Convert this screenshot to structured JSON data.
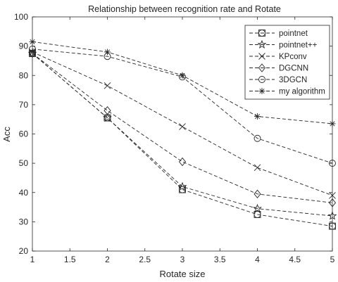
{
  "chart_data": {
    "type": "line",
    "title": "Relationship between recognition rate and Rotate",
    "xlabel": "Rotate size",
    "ylabel": "Acc",
    "x": [
      1,
      2,
      3,
      4,
      5
    ],
    "xlim": [
      1,
      5
    ],
    "ylim": [
      20,
      100
    ],
    "xticks": [
      1,
      1.5,
      2,
      2.5,
      3,
      3.5,
      4,
      4.5,
      5
    ],
    "yticks": [
      20,
      30,
      40,
      50,
      60,
      70,
      80,
      90,
      100
    ],
    "grid": false,
    "legend_position": "top-right",
    "line_color": "#262626",
    "line_style": "dashed",
    "series": [
      {
        "name": "pointnet",
        "marker": "square-circle",
        "values": [
          87.5,
          65.5,
          41,
          32.5,
          28.5
        ]
      },
      {
        "name": "pointnet++",
        "marker": "star",
        "values": [
          87.5,
          65.5,
          42,
          34.5,
          32
        ]
      },
      {
        "name": "KPconv",
        "marker": "x",
        "values": [
          88,
          76.5,
          62.5,
          48.5,
          39
        ]
      },
      {
        "name": "DGCNN",
        "marker": "diamond",
        "values": [
          87.5,
          68,
          50.5,
          39.5,
          36.5
        ]
      },
      {
        "name": "3DGCN",
        "marker": "circle",
        "values": [
          89,
          86.5,
          79.5,
          58.5,
          50
        ]
      },
      {
        "name": "my algorithm",
        "marker": "asterisk",
        "values": [
          91.5,
          88,
          80,
          66,
          63.5
        ]
      }
    ]
  }
}
